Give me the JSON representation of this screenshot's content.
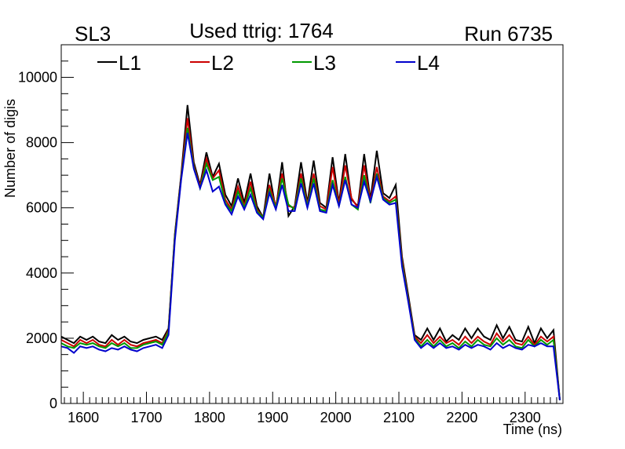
{
  "chart_data": {
    "type": "line",
    "panel_label": "SL3",
    "title": "Used ttrig: 1764",
    "run_label": "Run 6735",
    "xlabel": "Time (ns)",
    "ylabel": "Number of digis",
    "xlim": [
      1565,
      2360
    ],
    "ylim": [
      0,
      11000
    ],
    "xticks": [
      1600,
      1700,
      1800,
      1900,
      2000,
      2100,
      2200,
      2300
    ],
    "yticks": [
      0,
      2000,
      4000,
      6000,
      8000,
      10000
    ],
    "xtick_labels": [
      "1600",
      "1700",
      "1800",
      "1900",
      "2000",
      "2100",
      "2200",
      "2300"
    ],
    "ytick_labels": [
      "0",
      "2000",
      "4000",
      "6000",
      "8000",
      "10000"
    ],
    "x": [
      1565,
      1575,
      1585,
      1595,
      1605,
      1615,
      1625,
      1635,
      1645,
      1655,
      1665,
      1675,
      1685,
      1695,
      1705,
      1715,
      1725,
      1735,
      1745,
      1755,
      1765,
      1775,
      1785,
      1795,
      1805,
      1815,
      1825,
      1835,
      1845,
      1855,
      1865,
      1875,
      1885,
      1895,
      1905,
      1915,
      1925,
      1935,
      1945,
      1955,
      1965,
      1975,
      1985,
      1995,
      2005,
      2015,
      2025,
      2035,
      2045,
      2055,
      2065,
      2075,
      2085,
      2095,
      2105,
      2115,
      2125,
      2135,
      2145,
      2155,
      2165,
      2175,
      2185,
      2195,
      2205,
      2215,
      2225,
      2235,
      2245,
      2255,
      2265,
      2275,
      2285,
      2295,
      2305,
      2315,
      2325,
      2335,
      2345,
      2355
    ],
    "series": [
      {
        "name": "L1",
        "color": "#000000",
        "values": [
          2050,
          1950,
          1850,
          2050,
          1950,
          2050,
          1900,
          1850,
          2100,
          1950,
          2050,
          1900,
          1850,
          1950,
          2000,
          2050,
          1950,
          2300,
          5200,
          7000,
          9150,
          7400,
          6700,
          7700,
          6950,
          7350,
          6400,
          6050,
          6900,
          6150,
          7050,
          6050,
          5700,
          7050,
          5950,
          7400,
          5750,
          6050,
          7400,
          6150,
          7450,
          6150,
          6000,
          7550,
          6150,
          7650,
          6250,
          6050,
          7650,
          6250,
          7750,
          6450,
          6300,
          6700,
          4500,
          3300,
          2100,
          1950,
          2300,
          1950,
          2300,
          1900,
          2100,
          1950,
          2300,
          2000,
          2300,
          2050,
          1950,
          2400,
          2000,
          2350,
          1950,
          1900,
          2350,
          1850,
          2300,
          2000,
          2250,
          100
        ]
      },
      {
        "name": "L2",
        "color": "#cc0000",
        "values": [
          1950,
          1850,
          1750,
          1950,
          1850,
          1950,
          1800,
          1750,
          1950,
          1800,
          1950,
          1800,
          1750,
          1850,
          1900,
          1950,
          1850,
          2250,
          5150,
          6950,
          8750,
          7300,
          6650,
          7500,
          6900,
          7150,
          6250,
          5950,
          6650,
          6050,
          6800,
          5950,
          5700,
          6700,
          6050,
          7050,
          6050,
          6000,
          7050,
          6100,
          7050,
          6050,
          5950,
          7250,
          6100,
          7300,
          6300,
          6000,
          7300,
          6200,
          7250,
          6350,
          6200,
          6350,
          4400,
          3200,
          2050,
          1850,
          2100,
          1850,
          2050,
          1850,
          1950,
          1800,
          2050,
          1850,
          2050,
          1900,
          1800,
          2150,
          1900,
          2100,
          1850,
          1800,
          2050,
          1800,
          2050,
          1900,
          2050,
          100
        ]
      },
      {
        "name": "L3",
        "color": "#009900",
        "values": [
          1850,
          1750,
          1700,
          1850,
          1800,
          1850,
          1750,
          1700,
          1850,
          1750,
          1850,
          1700,
          1700,
          1800,
          1850,
          1900,
          1800,
          2200,
          5100,
          6900,
          8450,
          7250,
          6600,
          7350,
          6850,
          6950,
          6150,
          5900,
          6500,
          6000,
          6600,
          5900,
          5700,
          6550,
          6000,
          6900,
          6100,
          5950,
          6900,
          6050,
          6900,
          5950,
          5900,
          6850,
          6050,
          6950,
          6100,
          5950,
          7000,
          6150,
          7050,
          6300,
          6150,
          6250,
          4300,
          3150,
          2000,
          1750,
          1950,
          1750,
          1950,
          1750,
          1850,
          1700,
          1900,
          1750,
          1950,
          1800,
          1750,
          2000,
          1800,
          1950,
          1750,
          1700,
          1950,
          1750,
          1950,
          1800,
          1950,
          100
        ]
      },
      {
        "name": "L4",
        "color": "#0000cc",
        "values": [
          1750,
          1700,
          1550,
          1750,
          1700,
          1750,
          1650,
          1600,
          1700,
          1650,
          1750,
          1650,
          1600,
          1700,
          1750,
          1800,
          1700,
          2100,
          5000,
          6850,
          8300,
          7200,
          6600,
          7150,
          6500,
          6650,
          6100,
          5800,
          6350,
          5950,
          6400,
          5850,
          5650,
          6450,
          5950,
          6700,
          5900,
          5900,
          6750,
          6000,
          6750,
          5900,
          5850,
          6700,
          6050,
          6850,
          6100,
          6000,
          6800,
          6200,
          6950,
          6250,
          6100,
          6150,
          4200,
          3100,
          1950,
          1700,
          1850,
          1700,
          1850,
          1700,
          1750,
          1650,
          1800,
          1700,
          1800,
          1750,
          1650,
          1850,
          1700,
          1800,
          1700,
          1650,
          1800,
          1750,
          1850,
          1750,
          1750,
          100
        ]
      }
    ]
  }
}
